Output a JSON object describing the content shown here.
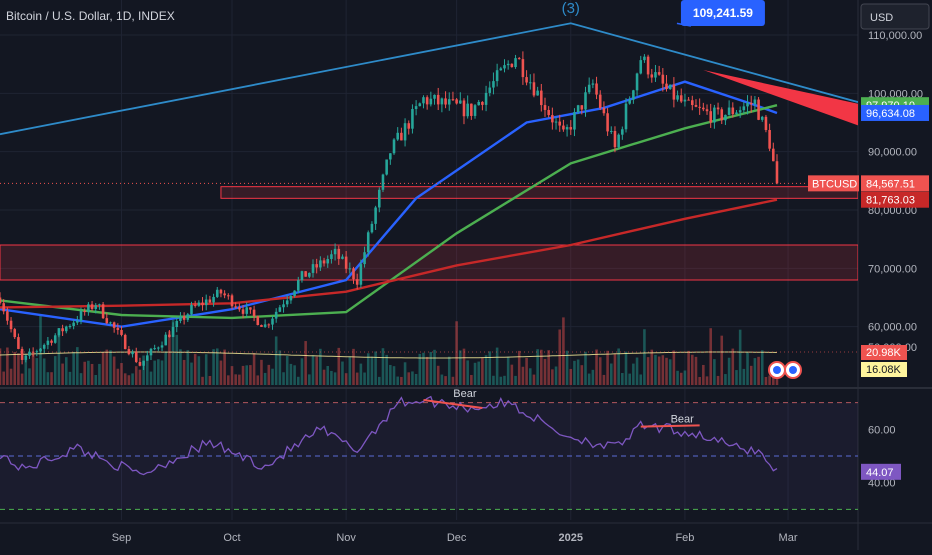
{
  "header": {
    "title": "Bitcoin / U.S. Dollar, 1D, INDEX",
    "currency": "USD"
  },
  "colors": {
    "background": "#131722",
    "up": "#26a69a",
    "down": "#ef5350",
    "ma_short": "#2962ff",
    "ma_mid": "#4caf50",
    "ma_long": "#c62828",
    "trendline": "#2e8bc9",
    "rsi": "#7e57c2",
    "vol_ma": "#fff59d"
  },
  "chart_data": [
    {
      "type": "candlestick",
      "yticks": [
        60000,
        70000,
        80000,
        90000,
        100000,
        110000
      ],
      "ytick_labels": [
        "60,000.00",
        "70,000.00",
        "80,000.00",
        "90,000.00",
        "100,000.00",
        "110,000.00"
      ],
      "ylim": [
        50000,
        116000
      ],
      "xticks": [
        "Sep",
        "Oct",
        "Nov",
        "Dec",
        "2025",
        "Feb",
        "Mar"
      ],
      "xtick_dates": [
        "2024-09-01",
        "2024-10-01",
        "2024-11-01",
        "2024-12-01",
        "2025-01-01",
        "2025-02-01",
        "2025-03-01"
      ],
      "x_range": [
        "2024-07-30",
        "2025-03-20"
      ],
      "anchors": [
        {
          "date": "2024-07-30",
          "price": 65000
        },
        {
          "date": "2024-08-05",
          "price": 54000
        },
        {
          "date": "2024-08-15",
          "price": 59000
        },
        {
          "date": "2024-08-25",
          "price": 64000
        },
        {
          "date": "2024-09-06",
          "price": 53500
        },
        {
          "date": "2024-09-20",
          "price": 63000
        },
        {
          "date": "2024-09-28",
          "price": 65800
        },
        {
          "date": "2024-10-10",
          "price": 60200
        },
        {
          "date": "2024-10-20",
          "price": 68500
        },
        {
          "date": "2024-10-29",
          "price": 72500
        },
        {
          "date": "2024-11-04",
          "price": 68000
        },
        {
          "date": "2024-11-13",
          "price": 90000
        },
        {
          "date": "2024-11-22",
          "price": 99000
        },
        {
          "date": "2024-12-05",
          "price": 97000
        },
        {
          "date": "2024-12-17",
          "price": 106500
        },
        {
          "date": "2024-12-30",
          "price": 92500
        },
        {
          "date": "2025-01-07",
          "price": 101500
        },
        {
          "date": "2025-01-13",
          "price": 90500
        },
        {
          "date": "2025-01-20",
          "price": 106000
        },
        {
          "date": "2025-01-27",
          "price": 100500
        },
        {
          "date": "2025-02-02",
          "price": 97500
        },
        {
          "date": "2025-02-10",
          "price": 96000
        },
        {
          "date": "2025-02-20",
          "price": 98500
        },
        {
          "date": "2025-02-24",
          "price": 91500
        },
        {
          "date": "2025-02-26",
          "price": 84567
        }
      ],
      "moving_averages": [
        {
          "color": "ma_short",
          "points": [
            [
              "2024-07-30",
              63000
            ],
            [
              "2024-09-01",
              60000
            ],
            [
              "2024-10-01",
              63000
            ],
            [
              "2024-11-01",
              68000
            ],
            [
              "2024-11-20",
              82000
            ],
            [
              "2024-12-20",
              95000
            ],
            [
              "2025-01-10",
              97500
            ],
            [
              "2025-02-01",
              102000
            ],
            [
              "2025-02-20",
              98000
            ],
            [
              "2025-02-26",
              96634
            ]
          ]
        },
        {
          "color": "ma_mid",
          "points": [
            [
              "2024-07-30",
              64500
            ],
            [
              "2024-09-01",
              62000
            ],
            [
              "2024-10-01",
              61500
            ],
            [
              "2024-11-01",
              62500
            ],
            [
              "2024-12-01",
              76000
            ],
            [
              "2025-01-01",
              88000
            ],
            [
              "2025-02-01",
              94000
            ],
            [
              "2025-02-26",
              97970
            ]
          ]
        },
        {
          "color": "ma_long",
          "points": [
            [
              "2024-07-30",
              63300
            ],
            [
              "2024-09-01",
              63600
            ],
            [
              "2024-10-01",
              64000
            ],
            [
              "2024-11-01",
              66000
            ],
            [
              "2024-12-01",
              70500
            ],
            [
              "2025-01-01",
              74000
            ],
            [
              "2025-02-01",
              78500
            ],
            [
              "2025-02-26",
              81763
            ]
          ]
        }
      ],
      "trendlines": [
        {
          "points": [
            [
              "2024-07-30",
              93000
            ],
            [
              "2025-01-01",
              112000
            ],
            [
              "2025-03-20",
              98500
            ]
          ],
          "color": "trendline"
        }
      ],
      "red_wedge": [
        [
          "2025-02-06",
          104000
        ],
        [
          "2025-03-20",
          98200
        ],
        [
          "2025-03-20",
          94500
        ]
      ],
      "zones": [
        {
          "from": 82000,
          "to": 84000,
          "start": "2024-09-28"
        },
        {
          "from": 68000,
          "to": 74000,
          "start": "2024-07-30"
        }
      ],
      "wave_label": {
        "text": "(3)",
        "date": "2025-01-01",
        "price": 116000
      },
      "callout": {
        "label": "109,241.59",
        "date": "2025-02-01",
        "price": 112000
      },
      "last_price_line": 84567.51,
      "price_badges": [
        {
          "label": "97,970.10",
          "price": 97970.1,
          "color": "ma_mid"
        },
        {
          "label": "96,634.08",
          "price": 96634.08,
          "color": "ma_short"
        },
        {
          "label": "84,567.51",
          "price": 84567.51,
          "color": "down",
          "tag": "BTCUSD"
        },
        {
          "label": "81,763.03",
          "price": 81763.03,
          "color": "ma_long"
        }
      ],
      "volume": {
        "badges": [
          "20.98K",
          "16.08K"
        ],
        "ref_line": "50,000.00"
      }
    },
    {
      "type": "line",
      "yticks": [
        40,
        60
      ],
      "ytick_labels": [
        "40.00",
        "60.00"
      ],
      "ylim": [
        26,
        74
      ],
      "levels": [
        70,
        50,
        30
      ],
      "anchors": [
        {
          "date": "2024-07-30",
          "value": 51
        },
        {
          "date": "2024-08-05",
          "value": 45
        },
        {
          "date": "2024-08-20",
          "value": 53
        },
        {
          "date": "2024-09-06",
          "value": 43
        },
        {
          "date": "2024-09-25",
          "value": 55
        },
        {
          "date": "2024-10-10",
          "value": 46
        },
        {
          "date": "2024-10-25",
          "value": 60
        },
        {
          "date": "2024-11-04",
          "value": 52
        },
        {
          "date": "2024-11-15",
          "value": 70
        },
        {
          "date": "2024-11-22",
          "value": 71
        },
        {
          "date": "2024-12-05",
          "value": 68
        },
        {
          "date": "2024-12-15",
          "value": 70
        },
        {
          "date": "2024-12-30",
          "value": 58
        },
        {
          "date": "2025-01-13",
          "value": 53
        },
        {
          "date": "2025-01-20",
          "value": 61
        },
        {
          "date": "2025-01-28",
          "value": 60
        },
        {
          "date": "2025-02-05",
          "value": 58
        },
        {
          "date": "2025-02-15",
          "value": 53
        },
        {
          "date": "2025-02-21",
          "value": 52
        },
        {
          "date": "2025-02-26",
          "value": 44
        }
      ],
      "annotations": [
        {
          "text": "Bear",
          "from": [
            "2024-11-22",
            71
          ],
          "to": [
            "2024-12-08",
            68
          ]
        },
        {
          "text": "Bear",
          "from": [
            "2025-01-20",
            61
          ],
          "to": [
            "2025-02-05",
            61.5
          ]
        }
      ],
      "last_value": "44.07"
    }
  ]
}
